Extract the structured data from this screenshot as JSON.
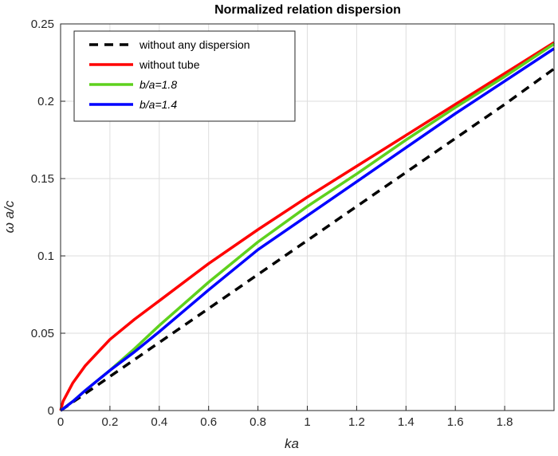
{
  "chart_data": {
    "type": "line",
    "title": "Normalized relation dispersion",
    "xlabel": "ka",
    "ylabel": "ω a/c",
    "xlim": [
      0,
      2
    ],
    "ylim": [
      0,
      0.25
    ],
    "xticks": [
      0,
      0.2,
      0.4,
      0.6,
      0.8,
      1,
      1.2,
      1.4,
      1.6,
      1.8
    ],
    "yticks": [
      0,
      0.05,
      0.1,
      0.15,
      0.2,
      0.25
    ],
    "grid": true,
    "legend_position": "top-left",
    "x": [
      0,
      0.01,
      0.05,
      0.1,
      0.2,
      0.3,
      0.4,
      0.6,
      0.8,
      1.0,
      1.2,
      1.4,
      1.6,
      1.8,
      2.0
    ],
    "series": [
      {
        "name": "without any dispersion",
        "color": "#000000",
        "style": "dashed",
        "values": [
          0,
          0.0011,
          0.0055,
          0.011,
          0.022,
          0.033,
          0.044,
          0.066,
          0.088,
          0.11,
          0.132,
          0.154,
          0.176,
          0.198,
          0.221
        ]
      },
      {
        "name": "without tube",
        "color": "#ff0000",
        "style": "solid",
        "values": [
          0,
          0.006,
          0.018,
          0.029,
          0.046,
          0.059,
          0.071,
          0.095,
          0.117,
          0.138,
          0.158,
          0.178,
          0.198,
          0.218,
          0.238
        ]
      },
      {
        "name": "b/a=1.8",
        "color": "#5ed11d",
        "style": "solid",
        "values": [
          0,
          0.0012,
          0.006,
          0.013,
          0.026,
          0.04,
          0.055,
          0.083,
          0.109,
          0.132,
          0.153,
          0.175,
          0.196,
          0.216,
          0.237
        ]
      },
      {
        "name": "b/a=1.4",
        "color": "#0000ff",
        "style": "solid",
        "values": [
          0,
          0.0011,
          0.006,
          0.013,
          0.026,
          0.038,
          0.051,
          0.078,
          0.104,
          0.126,
          0.148,
          0.17,
          0.192,
          0.213,
          0.234
        ]
      }
    ]
  }
}
